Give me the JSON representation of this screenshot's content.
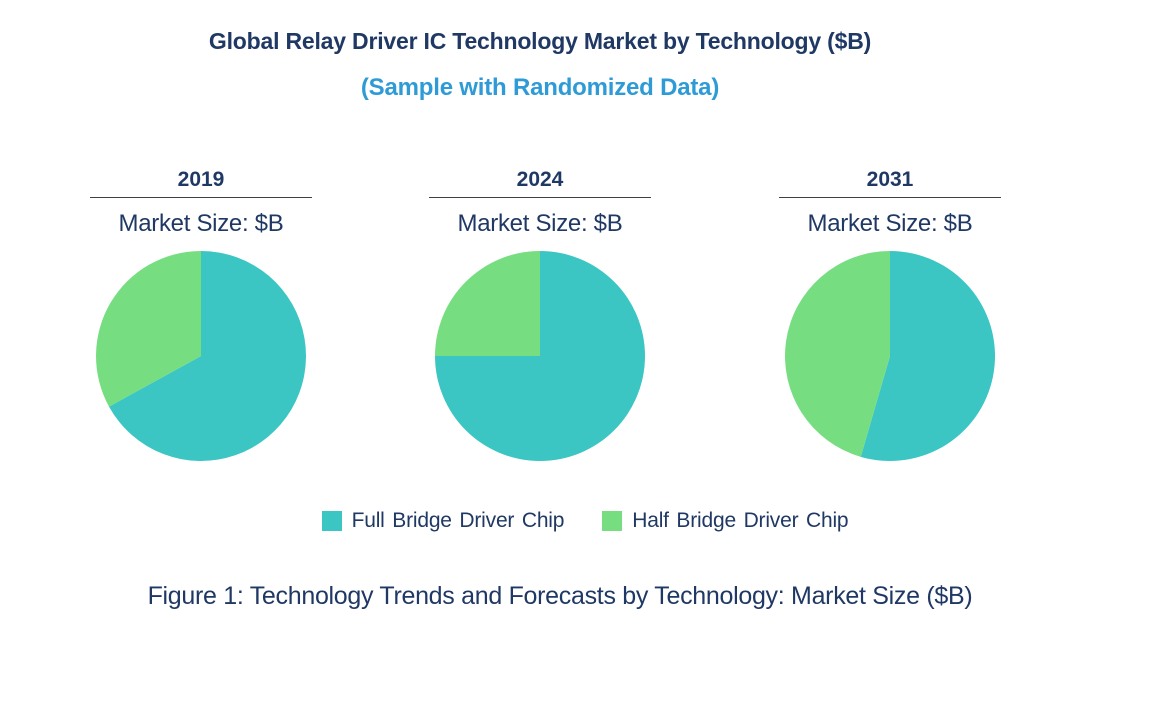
{
  "page": {
    "title": "Global Relay Driver IC Technology Market by Technology ($B)",
    "subtitle": "(Sample with Randomized Data)",
    "caption": "Figure 1: Technology Trends and Forecasts by Technology: Market Size ($B)"
  },
  "colors": {
    "title_navy": "#1F3864",
    "subtitle_blue": "#2E9BD6",
    "full_bridge_teal": "#3BC6C3",
    "half_bridge_green": "#76DE80",
    "divider_gray": "#404040",
    "background": "#FFFFFF"
  },
  "legend": {
    "position": "bottom-center",
    "items": [
      {
        "label": "Full Bridge Driver Chip",
        "color": "#3BC6C3"
      },
      {
        "label": "Half Bridge Driver Chip",
        "color": "#76DE80"
      }
    ]
  },
  "chart_data": [
    {
      "type": "pie",
      "year": "2019",
      "axis_title": "Market Size: $B",
      "start_angle_deg": 0,
      "direction": "clockwise",
      "slices": [
        {
          "label": "Full Bridge Driver Chip",
          "share_pct": 67,
          "color": "#3BC6C3"
        },
        {
          "label": "Half Bridge Driver Chip",
          "share_pct": 33,
          "color": "#76DE80"
        }
      ]
    },
    {
      "type": "pie",
      "year": "2024",
      "axis_title": "Market Size: $B",
      "start_angle_deg": 0,
      "direction": "clockwise",
      "slices": [
        {
          "label": "Full Bridge Driver Chip",
          "share_pct": 75,
          "color": "#3BC6C3"
        },
        {
          "label": "Half Bridge Driver Chip",
          "share_pct": 25,
          "color": "#76DE80"
        }
      ]
    },
    {
      "type": "pie",
      "year": "2031",
      "axis_title": "Market Size: $B",
      "start_angle_deg": 0,
      "direction": "clockwise",
      "slices": [
        {
          "label": "Full Bridge Driver Chip",
          "share_pct": 54.5,
          "color": "#3BC6C3"
        },
        {
          "label": "Half Bridge Driver Chip",
          "share_pct": 45.5,
          "color": "#76DE80"
        }
      ]
    }
  ]
}
